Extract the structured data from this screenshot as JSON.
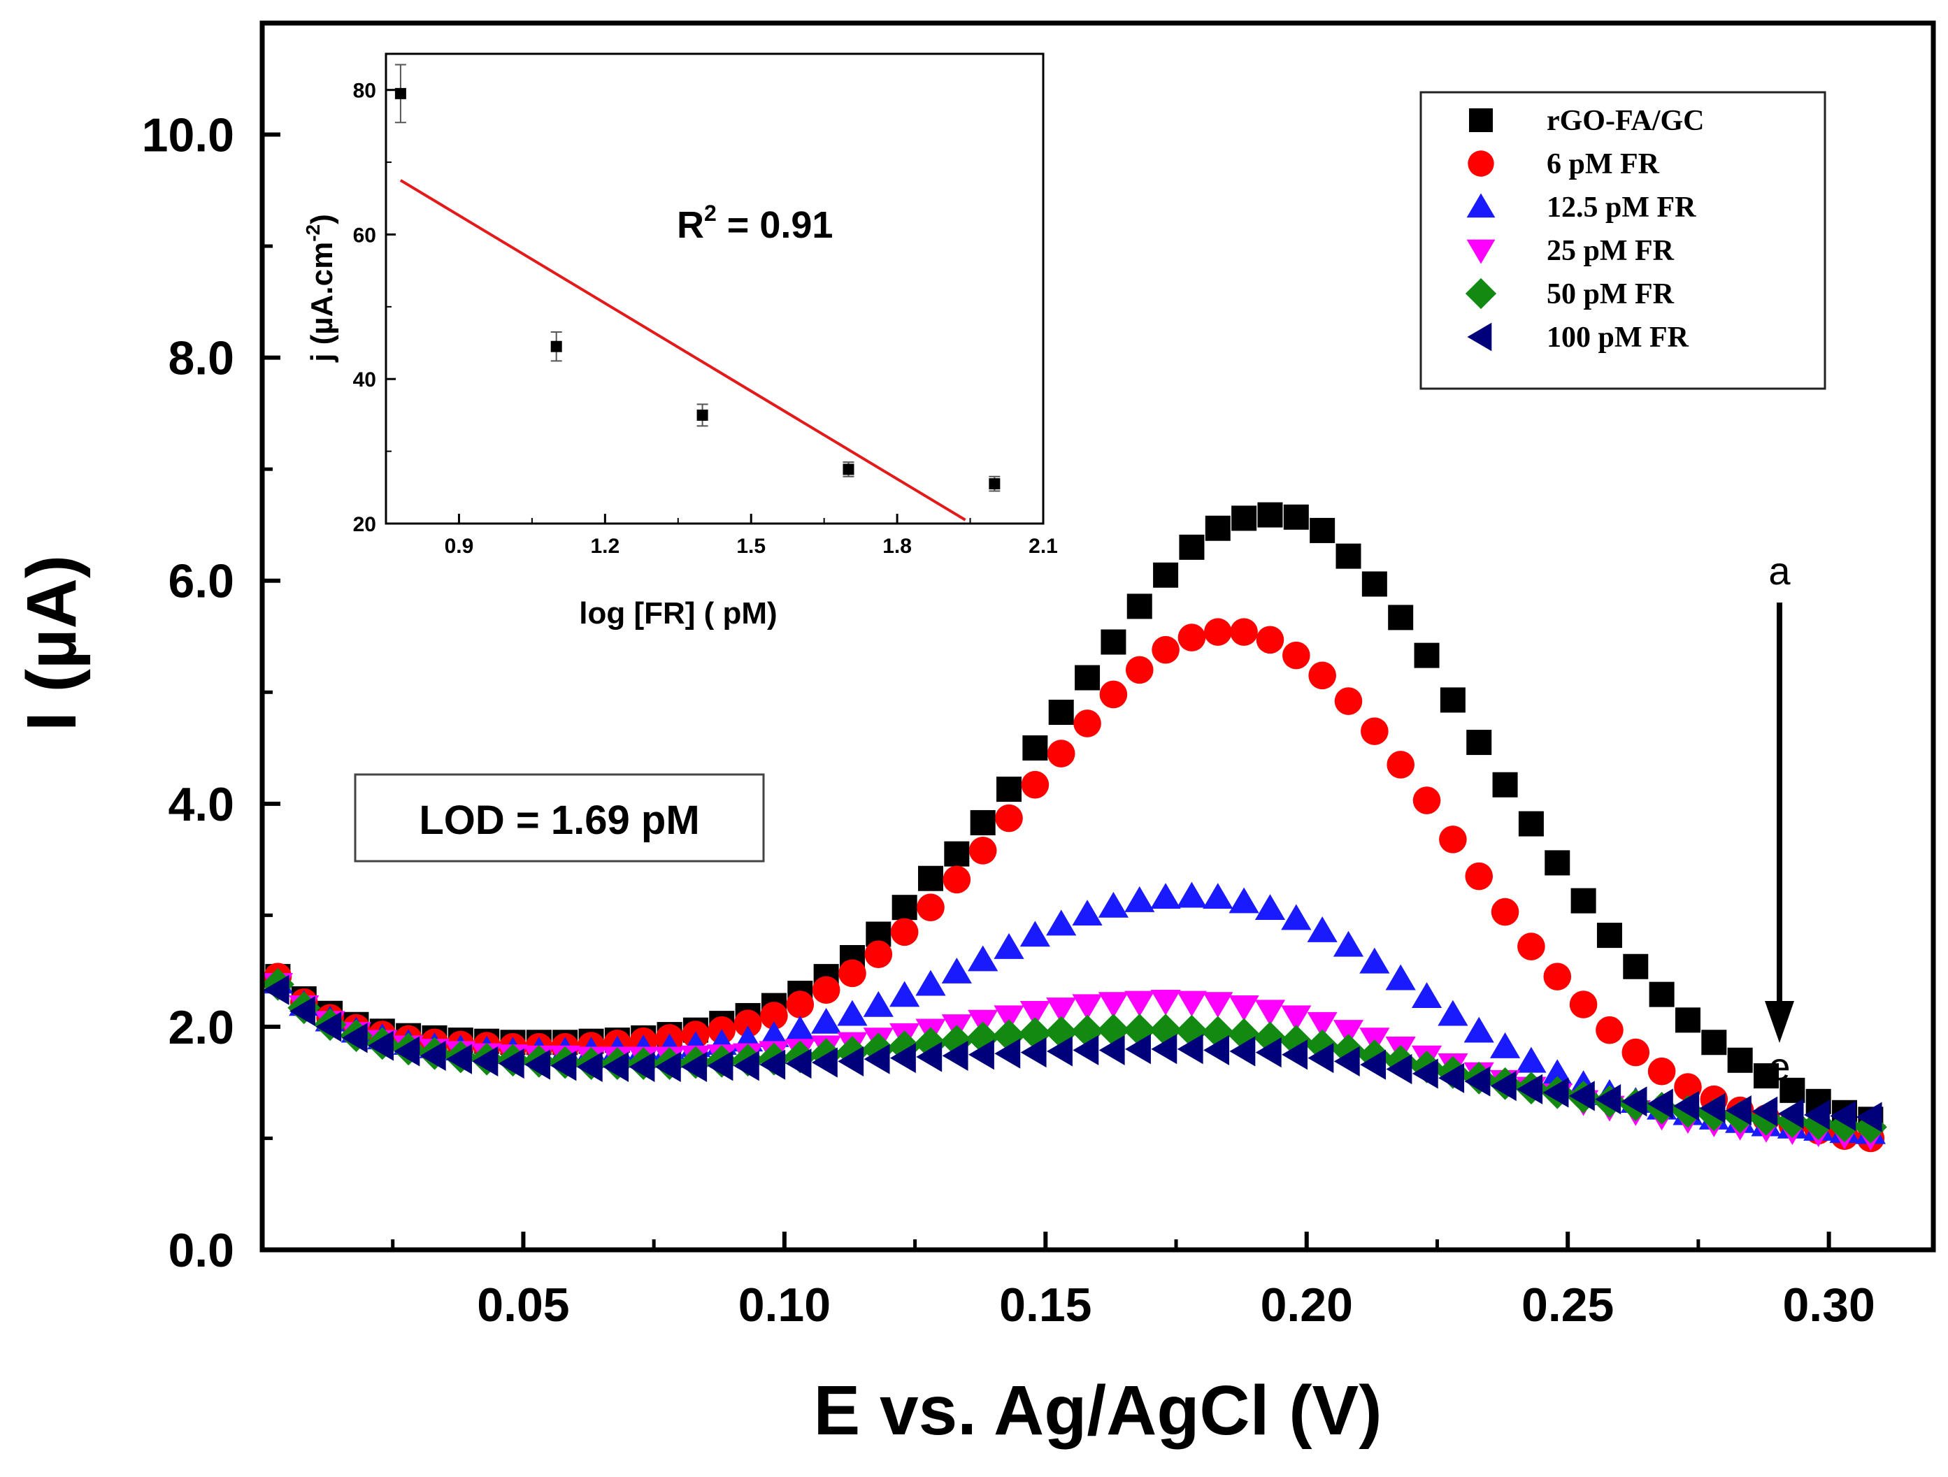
{
  "chart_data": [
    {
      "id": "main",
      "type": "scatter",
      "xlabel": "E vs. Ag/AgCl (V)",
      "ylabel": "I (µA)",
      "xlim": [
        0.0,
        0.32
      ],
      "ylim": [
        0.0,
        11.0
      ],
      "xticks": [
        {
          "v": 0.05,
          "label": "0.05"
        },
        {
          "v": 0.1,
          "label": "0.10"
        },
        {
          "v": 0.15,
          "label": "0.15"
        },
        {
          "v": 0.2,
          "label": "0.20"
        },
        {
          "v": 0.25,
          "label": "0.25"
        },
        {
          "v": 0.3,
          "label": "0.30"
        }
      ],
      "yticks": [
        {
          "v": 0.0,
          "label": "0.0"
        },
        {
          "v": 2.0,
          "label": "2.0"
        },
        {
          "v": 4.0,
          "label": "4.0"
        },
        {
          "v": 6.0,
          "label": "6.0"
        },
        {
          "v": 8.0,
          "label": "8.0"
        },
        {
          "v": 10.0,
          "label": "10.0"
        }
      ],
      "x_start": 0.003,
      "x_step": 0.005,
      "series": [
        {
          "name": "rGO-FA/GC",
          "marker": "square",
          "color": "#000000",
          "values": [
            2.45,
            2.25,
            2.12,
            2.02,
            1.96,
            1.92,
            1.9,
            1.88,
            1.87,
            1.86,
            1.86,
            1.86,
            1.87,
            1.88,
            1.9,
            1.93,
            1.97,
            2.03,
            2.1,
            2.19,
            2.3,
            2.45,
            2.62,
            2.83,
            3.07,
            3.33,
            3.55,
            3.83,
            4.13,
            4.5,
            4.82,
            5.13,
            5.45,
            5.77,
            6.05,
            6.3,
            6.47,
            6.56,
            6.59,
            6.57,
            6.45,
            6.22,
            5.97,
            5.67,
            5.33,
            4.93,
            4.55,
            4.17,
            3.82,
            3.47,
            3.13,
            2.82,
            2.54,
            2.29,
            2.06,
            1.86,
            1.7,
            1.56,
            1.43,
            1.33,
            1.23,
            1.17
          ]
        },
        {
          "name": "6 pM FR",
          "marker": "circle",
          "color": "#ff0000",
          "values": [
            2.45,
            2.22,
            2.08,
            1.99,
            1.93,
            1.89,
            1.86,
            1.84,
            1.83,
            1.82,
            1.82,
            1.82,
            1.83,
            1.85,
            1.87,
            1.9,
            1.93,
            1.97,
            2.03,
            2.1,
            2.2,
            2.33,
            2.48,
            2.65,
            2.85,
            3.07,
            3.32,
            3.58,
            3.87,
            4.17,
            4.45,
            4.72,
            4.98,
            5.2,
            5.38,
            5.49,
            5.54,
            5.54,
            5.47,
            5.33,
            5.15,
            4.92,
            4.65,
            4.35,
            4.03,
            3.68,
            3.35,
            3.03,
            2.72,
            2.45,
            2.2,
            1.97,
            1.77,
            1.6,
            1.46,
            1.35,
            1.25,
            1.18,
            1.12,
            1.07,
            1.02,
            1.0
          ]
        },
        {
          "name": "12.5 pM FR",
          "marker": "triangle-up",
          "color": "#1a1aff",
          "values": [
            2.4,
            2.2,
            2.06,
            1.96,
            1.9,
            1.85,
            1.82,
            1.8,
            1.79,
            1.78,
            1.78,
            1.78,
            1.78,
            1.79,
            1.8,
            1.81,
            1.83,
            1.85,
            1.88,
            1.92,
            1.97,
            2.04,
            2.11,
            2.19,
            2.28,
            2.38,
            2.49,
            2.6,
            2.71,
            2.82,
            2.92,
            3.01,
            3.08,
            3.13,
            3.16,
            3.17,
            3.16,
            3.12,
            3.06,
            2.97,
            2.86,
            2.73,
            2.58,
            2.43,
            2.27,
            2.11,
            1.96,
            1.82,
            1.69,
            1.58,
            1.48,
            1.4,
            1.33,
            1.27,
            1.22,
            1.18,
            1.15,
            1.12,
            1.1,
            1.08,
            1.06,
            1.05
          ]
        },
        {
          "name": "25 pM FR",
          "marker": "triangle-down",
          "color": "#ff00ff",
          "values": [
            2.38,
            2.18,
            2.04,
            1.94,
            1.87,
            1.82,
            1.79,
            1.77,
            1.75,
            1.74,
            1.73,
            1.73,
            1.72,
            1.72,
            1.72,
            1.72,
            1.73,
            1.74,
            1.75,
            1.77,
            1.79,
            1.82,
            1.85,
            1.89,
            1.93,
            1.97,
            2.01,
            2.05,
            2.09,
            2.13,
            2.16,
            2.19,
            2.21,
            2.22,
            2.23,
            2.22,
            2.21,
            2.18,
            2.14,
            2.09,
            2.03,
            1.96,
            1.89,
            1.81,
            1.73,
            1.66,
            1.58,
            1.51,
            1.45,
            1.39,
            1.33,
            1.28,
            1.24,
            1.2,
            1.17,
            1.14,
            1.11,
            1.09,
            1.07,
            1.05,
            1.03,
            1.02
          ]
        },
        {
          "name": "50 pM FR",
          "marker": "diamond",
          "color": "#128a12",
          "values": [
            2.38,
            2.17,
            2.02,
            1.92,
            1.85,
            1.8,
            1.76,
            1.73,
            1.71,
            1.7,
            1.69,
            1.68,
            1.67,
            1.67,
            1.67,
            1.67,
            1.68,
            1.69,
            1.7,
            1.71,
            1.73,
            1.75,
            1.77,
            1.8,
            1.82,
            1.85,
            1.87,
            1.9,
            1.92,
            1.94,
            1.95,
            1.96,
            1.97,
            1.97,
            1.97,
            1.96,
            1.95,
            1.93,
            1.9,
            1.87,
            1.83,
            1.79,
            1.74,
            1.69,
            1.64,
            1.59,
            1.54,
            1.49,
            1.45,
            1.41,
            1.37,
            1.33,
            1.3,
            1.27,
            1.24,
            1.21,
            1.19,
            1.17,
            1.15,
            1.13,
            1.11,
            1.1
          ]
        },
        {
          "name": "100 pM FR",
          "marker": "triangle-left",
          "color": "#00007a",
          "values": [
            2.33,
            2.14,
            2.0,
            1.9,
            1.83,
            1.78,
            1.74,
            1.71,
            1.69,
            1.67,
            1.66,
            1.65,
            1.64,
            1.64,
            1.64,
            1.64,
            1.64,
            1.65,
            1.65,
            1.66,
            1.67,
            1.68,
            1.69,
            1.71,
            1.72,
            1.73,
            1.74,
            1.75,
            1.76,
            1.77,
            1.78,
            1.79,
            1.79,
            1.8,
            1.8,
            1.8,
            1.79,
            1.78,
            1.77,
            1.75,
            1.72,
            1.69,
            1.66,
            1.62,
            1.58,
            1.54,
            1.51,
            1.47,
            1.44,
            1.41,
            1.38,
            1.35,
            1.33,
            1.31,
            1.29,
            1.27,
            1.25,
            1.24,
            1.22,
            1.21,
            1.2,
            1.19
          ]
        }
      ]
    },
    {
      "id": "inset",
      "type": "scatter",
      "xlabel": "log [FR] ( pM)",
      "ylabel": "j (µA.cm",
      "ylabel_sup": "-2",
      "ylabel_end": ")",
      "xlim": [
        0.75,
        2.1
      ],
      "ylim": [
        20,
        85
      ],
      "xticks": [
        {
          "v": 0.9,
          "label": "0.9"
        },
        {
          "v": 1.2,
          "label": "1.2"
        },
        {
          "v": 1.5,
          "label": "1.5"
        },
        {
          "v": 1.8,
          "label": "1.8"
        },
        {
          "v": 2.1,
          "label": "2.1"
        }
      ],
      "yticks": [
        {
          "v": 20,
          "label": "20"
        },
        {
          "v": 40,
          "label": "40"
        },
        {
          "v": 60,
          "label": "60"
        },
        {
          "v": 80,
          "label": "80"
        }
      ],
      "points": [
        {
          "x": 0.78,
          "y": 79.5,
          "err": 4.0
        },
        {
          "x": 1.1,
          "y": 44.5,
          "err": 2.0
        },
        {
          "x": 1.4,
          "y": 35.0,
          "err": 1.5
        },
        {
          "x": 1.7,
          "y": 27.5,
          "err": 1.0
        },
        {
          "x": 2.0,
          "y": 25.5,
          "err": 1.0
        }
      ],
      "fit": {
        "x1": 0.78,
        "y1": 67.5,
        "x2": 1.94,
        "y2": 20.5,
        "color": "#e31a1a"
      },
      "annotation": {
        "text": "R",
        "sup": "2",
        "rest": " = 0.91"
      }
    }
  ],
  "annotations": {
    "lod": "LOD =  1.69  pM",
    "arrow_start": "a",
    "arrow_end": "e"
  }
}
